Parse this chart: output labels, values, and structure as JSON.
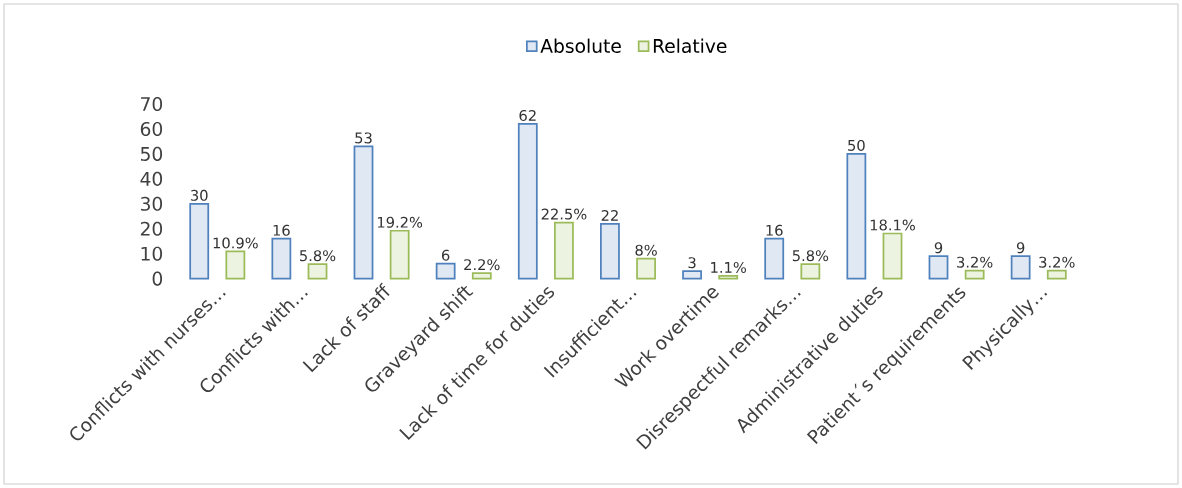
{
  "chart_data": {
    "type": "bar",
    "categories": [
      "Conflicts with nurses…",
      "Conflicts with…",
      "Lack of staff",
      "Graveyard shift",
      "Lack of time for duties",
      "Insufficient…",
      "Work overtime",
      "Disrespectful remarks…",
      "Administrative duties",
      "Patient´s requirements",
      "Physically…"
    ],
    "series": [
      {
        "name": "Absolute",
        "color": "#4f81bd",
        "values": [
          30,
          16,
          53,
          6,
          62,
          22,
          3,
          16,
          50,
          9,
          9
        ],
        "value_labels": [
          "30",
          "16",
          "53",
          "6",
          "62",
          "22",
          "3",
          "16",
          "50",
          "9",
          "9"
        ]
      },
      {
        "name": "Relative",
        "color": "#9bbb59",
        "values": [
          10.9,
          5.8,
          19.2,
          2.2,
          22.5,
          8,
          1.1,
          5.8,
          18.1,
          3.2,
          3.2
        ],
        "value_labels": [
          "10.9%",
          "5.8%",
          "19.2%",
          "2.2%",
          "22.5%",
          "8%",
          "1.1%",
          "5.8%",
          "18.1%",
          "3.2%",
          "3.2%"
        ]
      }
    ],
    "ylim": [
      0,
      70
    ],
    "yticks": [
      0,
      10,
      20,
      30,
      40,
      50,
      60,
      70
    ],
    "legend": "top",
    "grid": false
  }
}
